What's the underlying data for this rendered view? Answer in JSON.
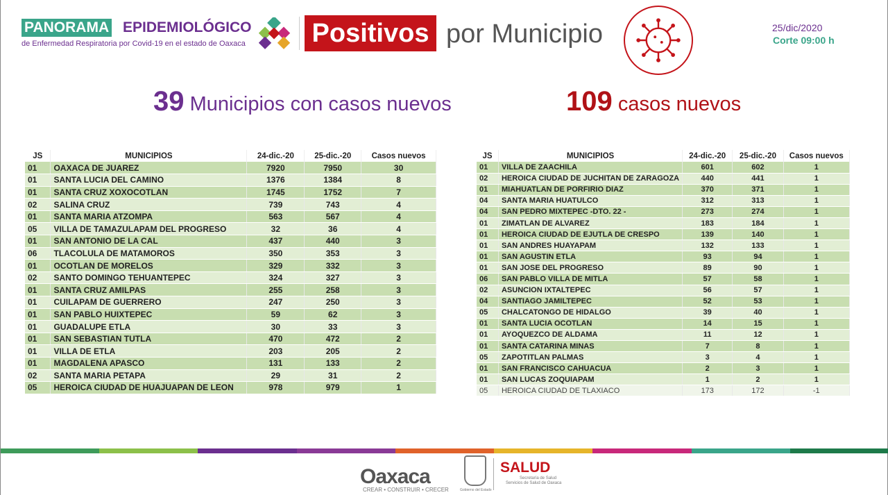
{
  "header": {
    "brand_a": "PANORAMA",
    "brand_b": "EPIDEMIOLÓGICO",
    "brand_sub": "de Enfermedad Respiratoria por Covid-19 en el estado de Oaxaca",
    "positivos": "Positivos",
    "por_municipio": "por Municipio",
    "date": "25/dic/2020",
    "corte": "Corte 09:00 h"
  },
  "stats": {
    "municipios_num": "39",
    "municipios_label": "Municipios con casos nuevos",
    "casos_num": "109",
    "casos_label": "casos nuevos"
  },
  "columns": [
    "JS",
    "MUNICIPIOS",
    "24-dic.-20",
    "25-dic.-20",
    "Casos nuevos"
  ],
  "table_left": [
    [
      "01",
      "OAXACA DE JUAREZ",
      "7920",
      "7950",
      "30"
    ],
    [
      "01",
      "SANTA LUCIA DEL CAMINO",
      "1376",
      "1384",
      "8"
    ],
    [
      "01",
      "SANTA CRUZ XOXOCOTLAN",
      "1745",
      "1752",
      "7"
    ],
    [
      "02",
      "SALINA CRUZ",
      "739",
      "743",
      "4"
    ],
    [
      "01",
      "SANTA MARIA ATZOMPA",
      "563",
      "567",
      "4"
    ],
    [
      "05",
      "VILLA DE TAMAZULAPAM DEL PROGRESO",
      "32",
      "36",
      "4"
    ],
    [
      "01",
      "SAN ANTONIO DE LA CAL",
      "437",
      "440",
      "3"
    ],
    [
      "06",
      "TLACOLULA DE MATAMOROS",
      "350",
      "353",
      "3"
    ],
    [
      "01",
      "OCOTLAN DE MORELOS",
      "329",
      "332",
      "3"
    ],
    [
      "02",
      "SANTO DOMINGO TEHUANTEPEC",
      "324",
      "327",
      "3"
    ],
    [
      "01",
      "SANTA CRUZ AMILPAS",
      "255",
      "258",
      "3"
    ],
    [
      "01",
      "CUILAPAM DE GUERRERO",
      "247",
      "250",
      "3"
    ],
    [
      "01",
      "SAN PABLO HUIXTEPEC",
      "59",
      "62",
      "3"
    ],
    [
      "01",
      "GUADALUPE ETLA",
      "30",
      "33",
      "3"
    ],
    [
      "01",
      "SAN SEBASTIAN TUTLA",
      "470",
      "472",
      "2"
    ],
    [
      "01",
      "VILLA DE ETLA",
      "203",
      "205",
      "2"
    ],
    [
      "01",
      "MAGDALENA APASCO",
      "131",
      "133",
      "2"
    ],
    [
      "02",
      "SANTA MARIA PETAPA",
      "29",
      "31",
      "2"
    ],
    [
      "05",
      "HEROICA CIUDAD DE HUAJUAPAN DE LEON",
      "978",
      "979",
      "1"
    ]
  ],
  "table_right": [
    [
      "01",
      "VILLA DE ZAACHILA",
      "601",
      "602",
      "1"
    ],
    [
      "02",
      "HEROICA CIUDAD DE JUCHITAN DE ZARAGOZA",
      "440",
      "441",
      "1"
    ],
    [
      "01",
      "MIAHUATLAN DE PORFIRIO DIAZ",
      "370",
      "371",
      "1"
    ],
    [
      "04",
      "SANTA MARIA HUATULCO",
      "312",
      "313",
      "1"
    ],
    [
      "04",
      "SAN PEDRO MIXTEPEC -DTO. 22 -",
      "273",
      "274",
      "1"
    ],
    [
      "01",
      "ZIMATLAN DE ALVAREZ",
      "183",
      "184",
      "1"
    ],
    [
      "01",
      "HEROICA CIUDAD DE EJUTLA DE CRESPO",
      "139",
      "140",
      "1"
    ],
    [
      "01",
      "SAN ANDRES HUAYAPAM",
      "132",
      "133",
      "1"
    ],
    [
      "01",
      "SAN AGUSTIN ETLA",
      "93",
      "94",
      "1"
    ],
    [
      "01",
      "SAN JOSE DEL PROGRESO",
      "89",
      "90",
      "1"
    ],
    [
      "06",
      "SAN PABLO VILLA DE MITLA",
      "57",
      "58",
      "1"
    ],
    [
      "02",
      "ASUNCION IXTALTEPEC",
      "56",
      "57",
      "1"
    ],
    [
      "04",
      "SANTIAGO JAMILTEPEC",
      "52",
      "53",
      "1"
    ],
    [
      "05",
      "CHALCATONGO DE HIDALGO",
      "39",
      "40",
      "1"
    ],
    [
      "01",
      "SANTA LUCIA OCOTLAN",
      "14",
      "15",
      "1"
    ],
    [
      "01",
      "AYOQUEZCO DE ALDAMA",
      "11",
      "12",
      "1"
    ],
    [
      "01",
      "SANTA CATARINA MINAS",
      "7",
      "8",
      "1"
    ],
    [
      "05",
      "ZAPOTITLAN PALMAS",
      "3",
      "4",
      "1"
    ],
    [
      "01",
      "SAN FRANCISCO CAHUACUA",
      "2",
      "3",
      "1"
    ],
    [
      "01",
      "SAN LUCAS ZOQUIAPAM",
      "1",
      "2",
      "1"
    ],
    [
      "05",
      "HEROICA CIUDAD DE TLAXIACO",
      "173",
      "172",
      "-1"
    ]
  ],
  "footer": {
    "oaxaca": "Oaxaca",
    "oaxaca_sub": "CREAR • CONSTRUIR • CRECER",
    "gobierno": "Gobierno del Estado",
    "salud": "SALUD",
    "salud_sub1": "Secretaría de Salud",
    "salud_sub2": "Servicios de Salud de Oaxaca"
  },
  "colors": {
    "purple": "#6b2f8f",
    "red": "#c4141a",
    "teal": "#3aa58a",
    "bar": [
      "#3e9b5a",
      "#8cc04a",
      "#6b2f8f",
      "#8a3a96",
      "#e0622a",
      "#e6b52a",
      "#c8287a",
      "#3aa58a",
      "#1e7a4a"
    ]
  }
}
